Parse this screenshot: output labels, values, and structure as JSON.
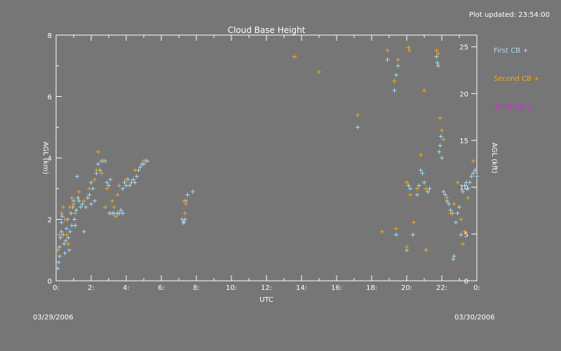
{
  "header": {
    "updated": "Plot updated: 23:54:00"
  },
  "dates": {
    "start": "03/29/2006",
    "end": "03/30/2006"
  },
  "colors": {
    "background": "#767676",
    "axis": "#ffffff",
    "first": "#a8dcf2",
    "second": "#f4a818",
    "third": "#e020e0"
  },
  "chart_data": {
    "type": "scatter",
    "title": "Cloud Base Height",
    "xlabel": "UTC",
    "ylabel": "AGL (km)",
    "y2label": "AGL (kft)",
    "xlim": [
      0,
      24
    ],
    "ylim": [
      0,
      8
    ],
    "y2lim": [
      0,
      26.25
    ],
    "xticks": [
      "0:",
      "2:",
      "4:",
      "6:",
      "8:",
      "10:",
      "12:",
      "14:",
      "16:",
      "18:",
      "20:",
      "22:",
      "0:"
    ],
    "yticks": [
      "0",
      "2",
      "4",
      "6",
      "8"
    ],
    "y2ticks": [
      "0",
      "5",
      "10",
      "15",
      "20",
      "25"
    ],
    "legend": [
      "First CB +",
      "Second CB +",
      "Third CB +"
    ],
    "legend_position": "right",
    "series": [
      {
        "name": "First CB",
        "points": [
          [
            0.1,
            0.4
          ],
          [
            0.15,
            0.6
          ],
          [
            0.2,
            0.8
          ],
          [
            0.2,
            1.1
          ],
          [
            0.25,
            1.4
          ],
          [
            0.3,
            1.6
          ],
          [
            0.3,
            1.9
          ],
          [
            0.35,
            2.1
          ],
          [
            0.4,
            1.5
          ],
          [
            0.45,
            1.2
          ],
          [
            0.5,
            0.9
          ],
          [
            0.55,
            1.3
          ],
          [
            0.6,
            1.7
          ],
          [
            0.65,
            2.0
          ],
          [
            0.7,
            1.4
          ],
          [
            0.75,
            1.0
          ],
          [
            0.8,
            1.6
          ],
          [
            0.85,
            2.2
          ],
          [
            0.9,
            1.8
          ],
          [
            0.95,
            2.4
          ],
          [
            1.0,
            2.6
          ],
          [
            1.05,
            2.0
          ],
          [
            1.1,
            1.8
          ],
          [
            1.15,
            2.3
          ],
          [
            1.2,
            3.4
          ],
          [
            1.25,
            2.7
          ],
          [
            1.3,
            2.6
          ],
          [
            1.4,
            2.4
          ],
          [
            1.5,
            2.5
          ],
          [
            1.6,
            1.6
          ],
          [
            1.7,
            2.4
          ],
          [
            1.8,
            2.7
          ],
          [
            1.9,
            2.8
          ],
          [
            2.0,
            2.5
          ],
          [
            2.0,
            3.2
          ],
          [
            2.1,
            3.0
          ],
          [
            2.2,
            2.6
          ],
          [
            2.3,
            3.5
          ],
          [
            2.4,
            3.8
          ],
          [
            2.5,
            3.6
          ],
          [
            2.6,
            3.9
          ],
          [
            2.7,
            3.9
          ],
          [
            2.8,
            3.9
          ],
          [
            2.9,
            3.2
          ],
          [
            3.0,
            3.1
          ],
          [
            3.05,
            2.2
          ],
          [
            3.1,
            3.3
          ],
          [
            3.2,
            2.2
          ],
          [
            3.3,
            2.2
          ],
          [
            3.4,
            2.1
          ],
          [
            3.5,
            2.2
          ],
          [
            3.6,
            2.2
          ],
          [
            3.7,
            2.3
          ],
          [
            3.8,
            2.2
          ],
          [
            3.8,
            3.0
          ],
          [
            3.9,
            3.2
          ],
          [
            4.0,
            3.1
          ],
          [
            4.1,
            3.3
          ],
          [
            4.2,
            3.1
          ],
          [
            4.3,
            3.2
          ],
          [
            4.4,
            3.3
          ],
          [
            4.5,
            3.2
          ],
          [
            4.6,
            3.4
          ],
          [
            4.7,
            3.6
          ],
          [
            4.8,
            3.7
          ],
          [
            4.9,
            3.8
          ],
          [
            5.0,
            3.8
          ],
          [
            5.1,
            3.9
          ],
          [
            5.2,
            3.9
          ],
          [
            7.2,
            2.0
          ],
          [
            7.25,
            1.9
          ],
          [
            7.3,
            1.9
          ],
          [
            7.35,
            2.0
          ],
          [
            7.4,
            2.6
          ],
          [
            7.5,
            2.8
          ],
          [
            7.8,
            2.9
          ],
          [
            13.6,
            7.3
          ],
          [
            15.0,
            6.8
          ],
          [
            17.2,
            5.0
          ],
          [
            18.9,
            7.2
          ],
          [
            19.3,
            6.2
          ],
          [
            19.4,
            6.7
          ],
          [
            19.5,
            7.0
          ],
          [
            19.4,
            1.5
          ],
          [
            20.0,
            1.0
          ],
          [
            20.0,
            3.2
          ],
          [
            20.1,
            3.1
          ],
          [
            20.2,
            3.0
          ],
          [
            20.35,
            1.5
          ],
          [
            20.6,
            2.8
          ],
          [
            20.7,
            3.1
          ],
          [
            20.8,
            3.6
          ],
          [
            20.9,
            3.5
          ],
          [
            21.0,
            3.2
          ],
          [
            21.1,
            1.0
          ],
          [
            21.2,
            2.9
          ],
          [
            21.3,
            3.0
          ],
          [
            21.7,
            7.3
          ],
          [
            21.75,
            7.1
          ],
          [
            21.8,
            7.0
          ],
          [
            21.85,
            4.2
          ],
          [
            21.9,
            4.4
          ],
          [
            21.95,
            4.7
          ],
          [
            22.0,
            4.0
          ],
          [
            22.1,
            2.9
          ],
          [
            22.2,
            2.8
          ],
          [
            22.3,
            2.6
          ],
          [
            22.4,
            2.5
          ],
          [
            22.5,
            2.3
          ],
          [
            22.6,
            2.2
          ],
          [
            22.65,
            0.7
          ],
          [
            22.7,
            0.8
          ],
          [
            22.8,
            1.9
          ],
          [
            22.9,
            2.2
          ],
          [
            23.0,
            2.4
          ],
          [
            23.1,
            1.5
          ],
          [
            23.2,
            2.9
          ],
          [
            23.3,
            3.1
          ],
          [
            23.4,
            3.2
          ],
          [
            23.5,
            3.0
          ],
          [
            23.6,
            3.2
          ],
          [
            23.7,
            3.4
          ],
          [
            23.8,
            3.5
          ],
          [
            23.9,
            3.6
          ],
          [
            24.0,
            3.4
          ]
        ]
      },
      {
        "name": "Second CB",
        "points": [
          [
            0.1,
            1.0
          ],
          [
            0.2,
            1.5
          ],
          [
            0.3,
            2.2
          ],
          [
            0.4,
            2.4
          ],
          [
            0.5,
            2.0
          ],
          [
            0.6,
            1.5
          ],
          [
            0.7,
            1.2
          ],
          [
            0.8,
            2.4
          ],
          [
            0.9,
            2.7
          ],
          [
            1.0,
            2.5
          ],
          [
            1.1,
            2.2
          ],
          [
            1.3,
            2.9
          ],
          [
            1.6,
            2.6
          ],
          [
            1.9,
            3.0
          ],
          [
            2.2,
            3.3
          ],
          [
            2.3,
            3.6
          ],
          [
            2.4,
            4.2
          ],
          [
            2.6,
            3.5
          ],
          [
            2.7,
            3.9
          ],
          [
            2.8,
            2.4
          ],
          [
            2.9,
            3.0
          ],
          [
            3.2,
            2.6
          ],
          [
            3.3,
            2.4
          ],
          [
            3.4,
            2.1
          ],
          [
            3.5,
            2.8
          ],
          [
            3.6,
            3.1
          ],
          [
            4.0,
            3.3
          ],
          [
            4.5,
            3.6
          ],
          [
            5.0,
            3.9
          ],
          [
            7.3,
            2.6
          ],
          [
            7.35,
            2.2
          ],
          [
            7.4,
            2.5
          ],
          [
            13.6,
            7.3
          ],
          [
            15.0,
            6.8
          ],
          [
            17.2,
            5.4
          ],
          [
            18.6,
            1.6
          ],
          [
            18.9,
            7.5
          ],
          [
            19.3,
            6.5
          ],
          [
            19.5,
            7.2
          ],
          [
            20.0,
            3.2
          ],
          [
            20.1,
            7.6
          ],
          [
            20.15,
            7.5
          ],
          [
            20.2,
            2.8
          ],
          [
            20.4,
            1.9
          ],
          [
            20.6,
            3.0
          ],
          [
            20.8,
            4.1
          ],
          [
            21.0,
            6.2
          ],
          [
            21.1,
            3.0
          ],
          [
            21.7,
            7.5
          ],
          [
            21.8,
            7.4
          ],
          [
            21.9,
            5.3
          ],
          [
            22.0,
            4.9
          ],
          [
            22.1,
            4.6
          ],
          [
            22.3,
            2.7
          ],
          [
            22.5,
            2.2
          ],
          [
            22.7,
            2.5
          ],
          [
            22.9,
            3.2
          ],
          [
            23.1,
            2.0
          ],
          [
            23.2,
            1.2
          ],
          [
            23.3,
            1.6
          ],
          [
            23.5,
            2.7
          ],
          [
            23.8,
            3.9
          ],
          [
            21.1,
            1.0
          ],
          [
            20.0,
            1.1
          ],
          [
            19.4,
            1.7
          ]
        ]
      },
      {
        "name": "Third CB",
        "points": []
      }
    ]
  }
}
